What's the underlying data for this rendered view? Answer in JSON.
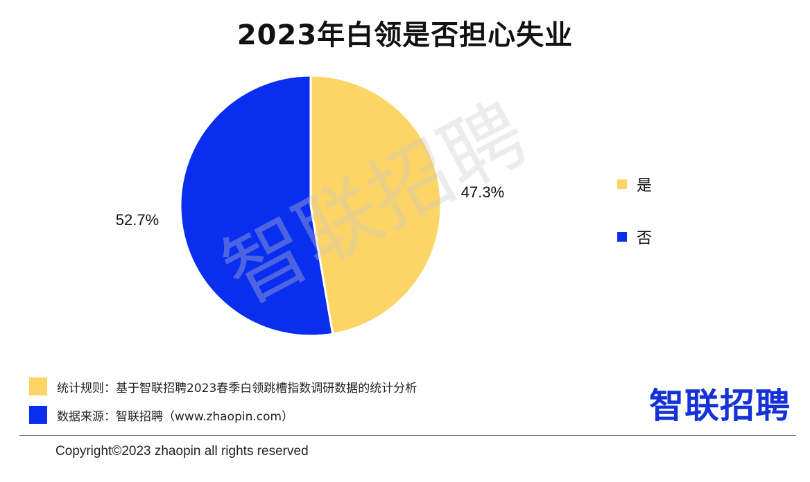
{
  "header": {
    "title": "2023年白领是否担心失业"
  },
  "chart_data": {
    "type": "pie",
    "slices": [
      {
        "label": "是",
        "value": 47.3,
        "display": "47.3%",
        "color": "#fdd566"
      },
      {
        "label": "否",
        "value": 52.7,
        "display": "52.7%",
        "color": "#0a2ef0"
      }
    ],
    "legend_position": "right"
  },
  "watermark": "智联招聘",
  "notes": [
    {
      "text": "统计规则：基于智联招聘2023春季白领跳槽指数调研数据的统计分析",
      "color": "#fdd566"
    },
    {
      "text": "数据来源：智联招聘（www.zhaopin.com）",
      "color": "#0a2ef0"
    }
  ],
  "brand_logo": "智联招聘",
  "footer": {
    "copyright": "Copyright©2023 zhaopin all rights reserved"
  }
}
